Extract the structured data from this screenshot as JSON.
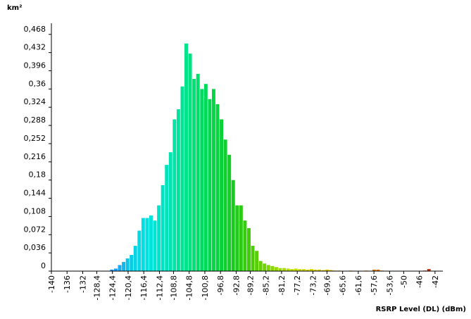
{
  "chart_data": {
    "type": "histogram",
    "ylabel": "km²",
    "xlabel": "RSRP Level (DL) (dBm)",
    "bins": [
      -125,
      -124,
      -123,
      -122,
      -121,
      -120,
      -119,
      -118,
      -117,
      -116,
      -115,
      -114,
      -113,
      -112,
      -111,
      -110,
      -109,
      -108,
      -107,
      -106,
      -105,
      -104,
      -103,
      -102,
      -101,
      -100,
      -99,
      -98,
      -97,
      -96,
      -95,
      -94,
      -93,
      -92,
      -91,
      -90,
      -89,
      -88,
      -87,
      -86,
      -85,
      -84,
      -83,
      -82,
      -81,
      -80,
      -79,
      -78,
      -77,
      -76,
      -75,
      -74,
      -73,
      -72,
      -71,
      -70,
      -69,
      -68,
      -67,
      -66,
      -65,
      -64,
      -63,
      -62,
      -61,
      -60,
      -59,
      -58,
      -57,
      -56,
      -55,
      -54,
      -53,
      -52,
      -51,
      -50,
      -49,
      -48,
      -47,
      -46,
      -45,
      -44,
      -43,
      -42,
      -41
    ],
    "values": [
      0.003,
      0.005,
      0.012,
      0.018,
      0.025,
      0.032,
      0.05,
      0.08,
      0.105,
      0.105,
      0.11,
      0.1,
      0.13,
      0.17,
      0.21,
      0.235,
      0.3,
      0.32,
      0.365,
      0.45,
      0.43,
      0.38,
      0.39,
      0.36,
      0.37,
      0.34,
      0.36,
      0.33,
      0.3,
      0.26,
      0.23,
      0.18,
      0.13,
      0.13,
      0.1,
      0.085,
      0.05,
      0.04,
      0.02,
      0.015,
      0.012,
      0.01,
      0.008,
      0.006,
      0.006,
      0.005,
      0.004,
      0.005,
      0.004,
      0.004,
      0.003,
      0.004,
      0.003,
      0.003,
      0.002,
      0.003,
      0.002,
      0.001,
      0.001,
      0,
      0,
      0.001,
      0,
      0,
      0,
      0.001,
      0,
      0.003,
      0.003,
      0.001,
      0,
      0,
      0,
      0,
      0,
      0,
      0,
      0,
      0,
      0,
      0.001,
      0.004,
      0,
      0
    ],
    "colors": [
      "#1a8cff",
      "#1e9cf8",
      "#16aaf2",
      "#10b8ee",
      "#0cc4ea",
      "#08cde8",
      "#06d4e6",
      "#04dae6",
      "#02dfe4",
      "#00e2e0",
      "#00e4dc",
      "#00e4d6",
      "#00e4ce",
      "#00e4c6",
      "#00e4bc",
      "#00e4b2",
      "#00e4a8",
      "#00e49e",
      "#00e494",
      "#00e48a",
      "#00e280",
      "#00e076",
      "#00de6c",
      "#00dc62",
      "#00da58",
      "#02d84e",
      "#04d646",
      "#06d43e",
      "#08d236",
      "#0cd02e",
      "#12ce26",
      "#18cc1e",
      "#20cc18",
      "#2acc12",
      "#34cc0c",
      "#40cc08",
      "#4ccc06",
      "#58ce04",
      "#64d002",
      "#70d200",
      "#7cd400",
      "#88d600",
      "#94d800",
      "#a0da00",
      "#aadc00",
      "#b4de00",
      "#bcde00",
      "#c4de00",
      "#cade00",
      "#d0dc00",
      "#d4da00",
      "#d8d600",
      "#dcd200",
      "#dece00",
      "#e0ca00",
      "#e0c400",
      "#e0be00",
      "#e0b800",
      "#e0b200",
      "#e0ac00",
      "#e0a600",
      "#e0a000",
      "#e09a00",
      "#e09400",
      "#e08e00",
      "#e08800",
      "#e08200",
      "#e07c00",
      "#e07600",
      "#e07000",
      "#de6a00",
      "#dc6400",
      "#da5e00",
      "#d85800",
      "#d65200",
      "#d44c00",
      "#d24600",
      "#d04000",
      "#ce3a00",
      "#cc3400",
      "#cc2e00",
      "#cc2800",
      "#cc2200",
      "#cc1c00"
    ],
    "xlim": [
      -140,
      -40
    ],
    "ylim": [
      0,
      0.49
    ],
    "xticks": [
      -140,
      -136,
      -132,
      {
        "value": -128.4,
        "label": "-128,4"
      },
      {
        "value": -124.4,
        "label": "-124,4"
      },
      {
        "value": -120.4,
        "label": "-120,4"
      },
      {
        "value": -116.4,
        "label": "-116,4"
      },
      {
        "value": -112.4,
        "label": "-112,4"
      },
      {
        "value": -108.8,
        "label": "-108,8"
      },
      {
        "value": -104.8,
        "label": "-104,8"
      },
      {
        "value": -100.8,
        "label": "-100,8"
      },
      {
        "value": -96.8,
        "label": "-96,8"
      },
      {
        "value": -92.8,
        "label": "-92,8"
      },
      {
        "value": -89.2,
        "label": "-89,2"
      },
      {
        "value": -85.2,
        "label": "-85,2"
      },
      {
        "value": -81.2,
        "label": "-81,2"
      },
      {
        "value": -77.2,
        "label": "-77,2"
      },
      {
        "value": -73.2,
        "label": "-73,2"
      },
      {
        "value": -69.6,
        "label": "-69,6"
      },
      {
        "value": -65.6,
        "label": "-65,6"
      },
      {
        "value": -61.6,
        "label": "-61,6"
      },
      {
        "value": -57.6,
        "label": "-57,6"
      },
      {
        "value": -53.6,
        "label": "-53,6"
      },
      -50,
      -46,
      -42
    ],
    "yticks": [
      0,
      {
        "value": 0.036,
        "label": "0,036"
      },
      {
        "value": 0.072,
        "label": "0,072"
      },
      {
        "value": 0.108,
        "label": "0,108"
      },
      {
        "value": 0.144,
        "label": "0,144"
      },
      {
        "value": 0.18,
        "label": "0,18"
      },
      {
        "value": 0.216,
        "label": "0,216"
      },
      {
        "value": 0.252,
        "label": "0,252"
      },
      {
        "value": 0.288,
        "label": "0,288"
      },
      {
        "value": 0.324,
        "label": "0,324"
      },
      {
        "value": 0.36,
        "label": "0,36"
      },
      {
        "value": 0.396,
        "label": "0,396"
      },
      {
        "value": 0.432,
        "label": "0,432"
      },
      {
        "value": 0.468,
        "label": "0,468"
      }
    ],
    "grid": false
  }
}
